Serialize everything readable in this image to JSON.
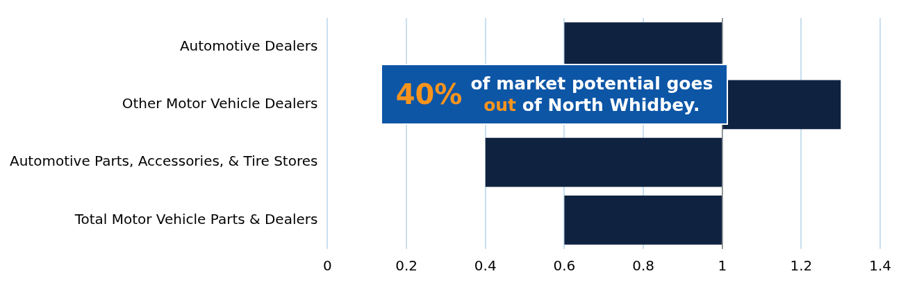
{
  "chart_data": {
    "type": "bar",
    "orientation": "horizontal",
    "categories": [
      "Automotive Dealers",
      "Other Motor Vehicle Dealers",
      "Automotive Parts, Accessories, & Tire Stores",
      "Total Motor Vehicle Parts & Dealers"
    ],
    "base": [
      1,
      1,
      1,
      1
    ],
    "values": [
      -0.4,
      0.3,
      -0.6,
      -0.4
    ],
    "color": "#0f2341",
    "xlim": [
      0,
      1.4
    ],
    "xticks": [
      0,
      0.2,
      0.4,
      0.6,
      0.8,
      1,
      1.2,
      1.4
    ],
    "grid": "x",
    "legend": false,
    "ref_lines": [
      {
        "axis": "x",
        "value": 1,
        "color": "#7f7f7f"
      }
    ],
    "annotations": [
      "40% of market potential goes out of North Whidbey."
    ]
  }
}
